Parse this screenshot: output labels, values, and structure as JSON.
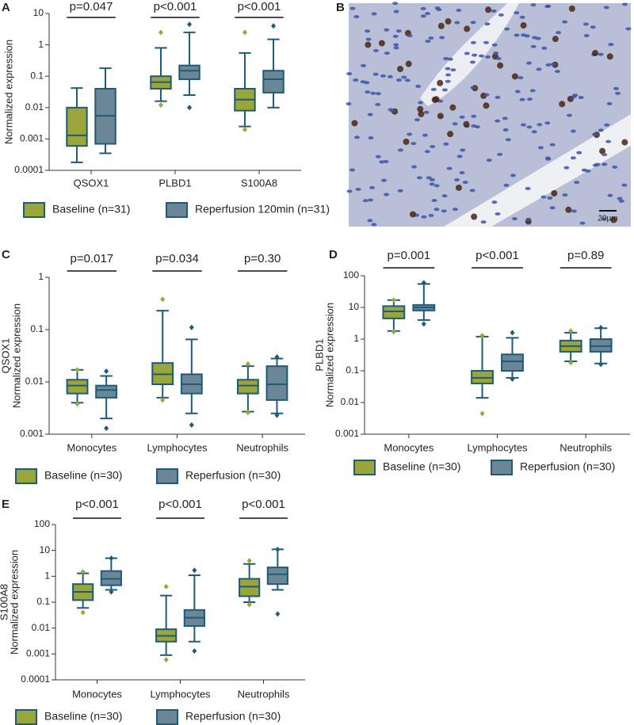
{
  "chart_data": [
    {
      "panel": "A",
      "type": "box",
      "ylog": true,
      "ylabel": "Normalized expression",
      "categories": [
        "QSOX1",
        "PLBD1",
        "S100A8"
      ],
      "annotations": [
        "p=0.047",
        "p<0.001",
        "p<0.001"
      ],
      "ylim": [
        0.0001,
        10
      ],
      "yticks": [
        0.0001,
        0.001,
        0.01,
        0.1,
        1,
        10
      ],
      "series": [
        {
          "name": "Baseline (n=31)",
          "color": "#9aa63a",
          "values": [
            {
              "low": 0.00018,
              "q1": 0.0006,
              "median": 0.0013,
              "q3": 0.01,
              "high": 0.042,
              "outliers": []
            },
            {
              "low": 0.016,
              "q1": 0.04,
              "median": 0.065,
              "q3": 0.1,
              "high": 0.8,
              "outliers": [
                2.5,
                0.012
              ]
            },
            {
              "low": 0.0025,
              "q1": 0.008,
              "median": 0.018,
              "q3": 0.04,
              "high": 0.55,
              "outliers": [
                2.5,
                0.002
              ]
            }
          ]
        },
        {
          "name": "Reperfusion 120min (n=31)",
          "color": "#6b8797",
          "values": [
            {
              "low": 0.00035,
              "q1": 0.0007,
              "median": 0.0055,
              "q3": 0.04,
              "high": 0.18,
              "outliers": []
            },
            {
              "low": 0.025,
              "q1": 0.08,
              "median": 0.15,
              "q3": 0.22,
              "high": 2.5,
              "outliers": [
                4.5,
                0.01
              ]
            },
            {
              "low": 0.01,
              "q1": 0.03,
              "median": 0.08,
              "q3": 0.15,
              "high": 1.5,
              "outliers": [
                4
              ]
            }
          ]
        }
      ]
    },
    {
      "panel": "B",
      "type": "image",
      "scale_bar": "20µm"
    },
    {
      "panel": "C",
      "type": "box",
      "ylog": true,
      "ylabel_gene": "QSOX1",
      "ylabel": "Normalized expression",
      "categories": [
        "Monocytes",
        "Lymphocytes",
        "Neutrophils"
      ],
      "annotations": [
        "p=0.017",
        "p=0.034",
        "p=0.30"
      ],
      "ylim": [
        0.001,
        1
      ],
      "yticks": [
        0.001,
        0.01,
        0.1,
        1
      ],
      "series": [
        {
          "name": "Baseline (n=30)",
          "color": "#9aa63a",
          "values": [
            {
              "low": 0.004,
              "q1": 0.006,
              "median": 0.0085,
              "q3": 0.011,
              "high": 0.017,
              "outliers": [
                0.017,
                0.0038
              ]
            },
            {
              "low": 0.005,
              "q1": 0.009,
              "median": 0.014,
              "q3": 0.023,
              "high": 0.23,
              "outliers": [
                0.38,
                0.0045
              ]
            },
            {
              "low": 0.0027,
              "q1": 0.006,
              "median": 0.0085,
              "q3": 0.011,
              "high": 0.02,
              "outliers": [
                0.022,
                0.0026
              ]
            }
          ]
        },
        {
          "name": "Reperfusion (n=30)",
          "color": "#6b8797",
          "values": [
            {
              "low": 0.002,
              "q1": 0.005,
              "median": 0.007,
              "q3": 0.0085,
              "high": 0.013,
              "outliers": [
                0.016,
                0.0013
              ]
            },
            {
              "low": 0.0025,
              "q1": 0.006,
              "median": 0.009,
              "q3": 0.014,
              "high": 0.065,
              "outliers": [
                0.11,
                0.0015
              ]
            },
            {
              "low": 0.0025,
              "q1": 0.0045,
              "median": 0.009,
              "q3": 0.02,
              "high": 0.028,
              "outliers": [
                0.03,
                0.0023
              ]
            }
          ]
        }
      ]
    },
    {
      "panel": "D",
      "type": "box",
      "ylog": true,
      "ylabel_gene": "PLBD1",
      "ylabel": "Normalized expression",
      "categories": [
        "Monocytes",
        "Lymphocytes",
        "Neutrophils"
      ],
      "annotations": [
        "p=0.001",
        "p<0.001",
        "p=0.89"
      ],
      "ylim": [
        0.001,
        100
      ],
      "yticks": [
        0.001,
        0.01,
        0.1,
        1,
        10,
        100
      ],
      "series": [
        {
          "name": "Baseline (n=30)",
          "color": "#9aa63a",
          "values": [
            {
              "low": 1.8,
              "q1": 4.5,
              "median": 7.5,
              "q3": 11,
              "high": 17,
              "outliers": [
                17,
                1.7
              ]
            },
            {
              "low": 0.014,
              "q1": 0.04,
              "median": 0.06,
              "q3": 0.1,
              "high": 1.2,
              "outliers": [
                1.3,
                0.0045
              ]
            },
            {
              "low": 0.2,
              "q1": 0.4,
              "median": 0.6,
              "q3": 0.9,
              "high": 1.6,
              "outliers": [
                1.8,
                0.18
              ]
            }
          ]
        },
        {
          "name": "Reperfusion (n=30)",
          "color": "#6b8797",
          "values": [
            {
              "low": 4,
              "q1": 8,
              "median": 10,
              "q3": 12,
              "high": 55,
              "outliers": [
                60,
                3
              ]
            },
            {
              "low": 0.06,
              "q1": 0.1,
              "median": 0.2,
              "q3": 0.33,
              "high": 1.1,
              "outliers": [
                1.6,
                0.055
              ]
            },
            {
              "low": 0.17,
              "q1": 0.4,
              "median": 0.6,
              "q3": 1,
              "high": 2.2,
              "outliers": [
                2.3,
                0.16
              ]
            }
          ]
        }
      ]
    },
    {
      "panel": "E",
      "type": "box",
      "ylog": true,
      "ylabel_gene": "S100A8",
      "ylabel": "Normalized expression",
      "categories": [
        "Monocytes",
        "Lymphocytes",
        "Neutrophils"
      ],
      "annotations": [
        "p<0.001",
        "p<0.001",
        "p<0.001"
      ],
      "ylim": [
        0.0001,
        100
      ],
      "yticks": [
        0.0001,
        0.001,
        0.01,
        0.1,
        1,
        10,
        100
      ],
      "series": [
        {
          "name": "Baseline (n=30)",
          "color": "#9aa63a",
          "values": [
            {
              "low": 0.06,
              "q1": 0.12,
              "median": 0.25,
              "q3": 0.5,
              "high": 1.3,
              "outliers": [
                1.5,
                0.04
              ]
            },
            {
              "low": 0.0009,
              "q1": 0.003,
              "median": 0.005,
              "q3": 0.009,
              "high": 0.18,
              "outliers": [
                0.4,
                0.0006
              ]
            },
            {
              "low": 0.1,
              "q1": 0.17,
              "median": 0.4,
              "q3": 0.8,
              "high": 3,
              "outliers": [
                4,
                0.08
              ]
            }
          ]
        },
        {
          "name": "Reperfusion (n=30)",
          "color": "#6b8797",
          "values": [
            {
              "low": 0.3,
              "q1": 0.45,
              "median": 0.8,
              "q3": 1.6,
              "high": 5,
              "outliers": [
                5,
                0.25
              ]
            },
            {
              "low": 0.003,
              "q1": 0.012,
              "median": 0.025,
              "q3": 0.05,
              "high": 1.1,
              "outliers": [
                1.7,
                0.0013
              ]
            },
            {
              "low": 0.3,
              "q1": 0.5,
              "median": 1.2,
              "q3": 2.2,
              "high": 11,
              "outliers": [
                11,
                0.035
              ]
            }
          ]
        }
      ]
    }
  ]
}
